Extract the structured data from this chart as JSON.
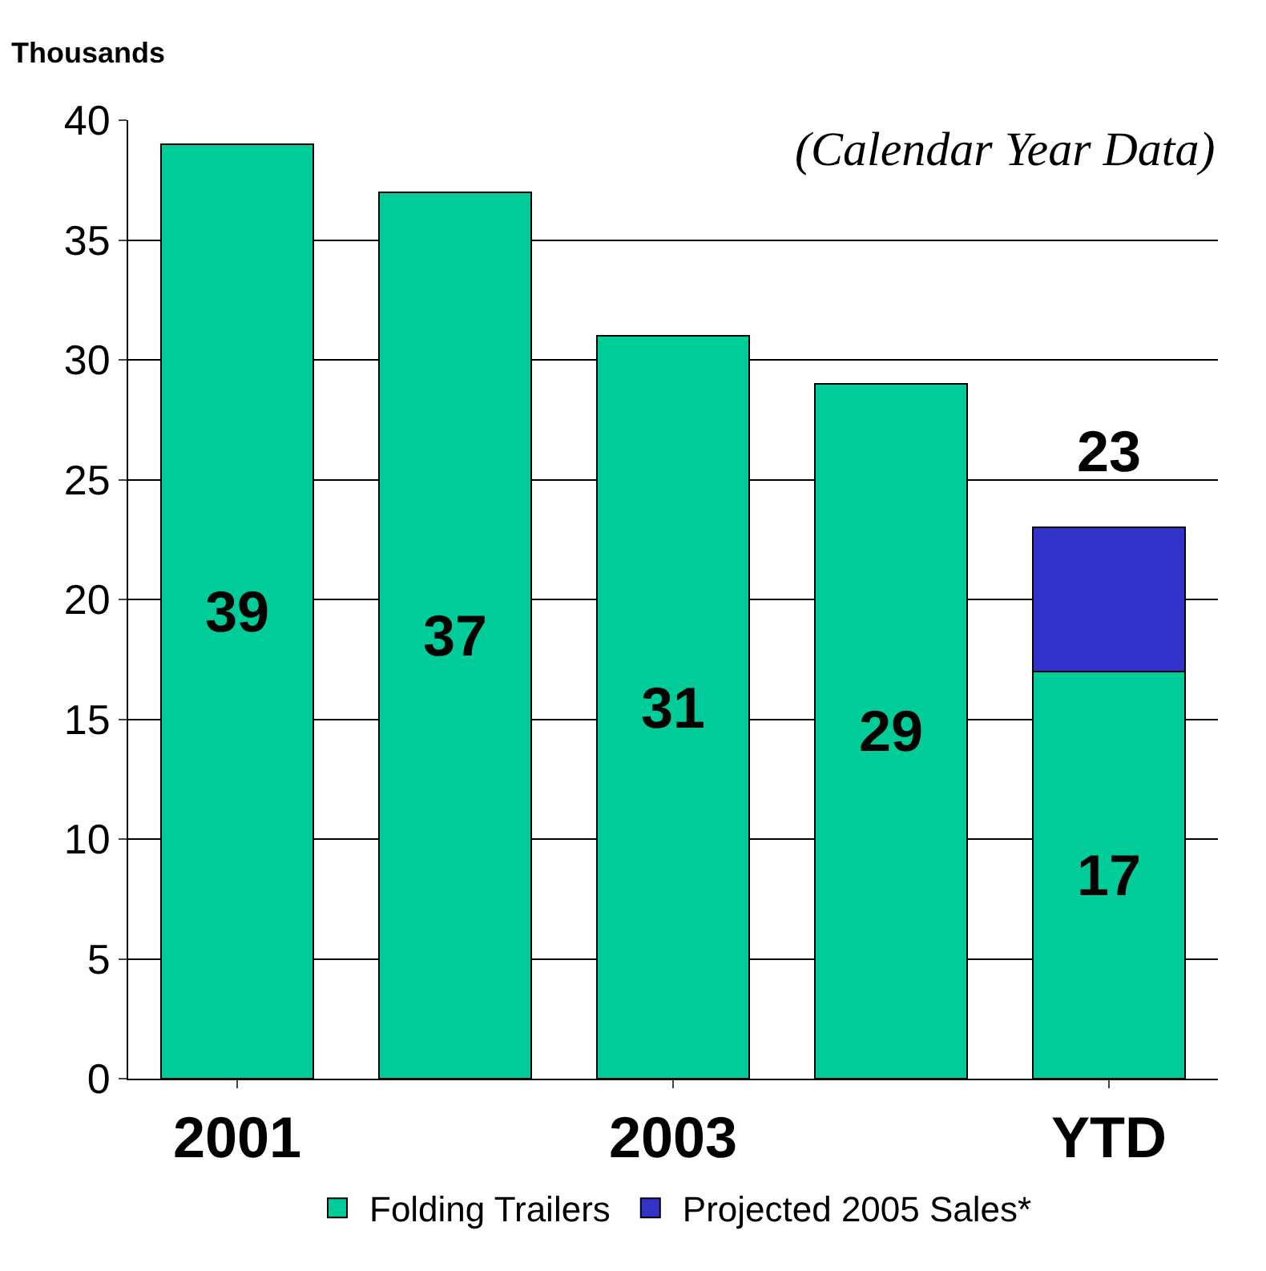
{
  "chart_data": {
    "type": "bar",
    "stacked": true,
    "ylabel": "Thousands",
    "categories": [
      "2001",
      null,
      "2003",
      null,
      "YTD"
    ],
    "series": [
      {
        "name": "Folding Trailers",
        "color": "#00cc99",
        "values": [
          39,
          37,
          31,
          29,
          17
        ],
        "value_labels": [
          "39",
          "37",
          "31",
          "29",
          "17"
        ]
      },
      {
        "name": "Projected 2005 Sales*",
        "color": "#3333cc",
        "values": [
          null,
          null,
          null,
          null,
          6
        ]
      }
    ],
    "totals": [
      null,
      null,
      null,
      null,
      "23"
    ],
    "annotations": [
      "(Calendar Year Data)"
    ],
    "ylim": [
      0,
      40
    ],
    "yticks": [
      0,
      5,
      10,
      15,
      20,
      25,
      30,
      35,
      40
    ],
    "grid": "y",
    "legend": "bottom"
  }
}
